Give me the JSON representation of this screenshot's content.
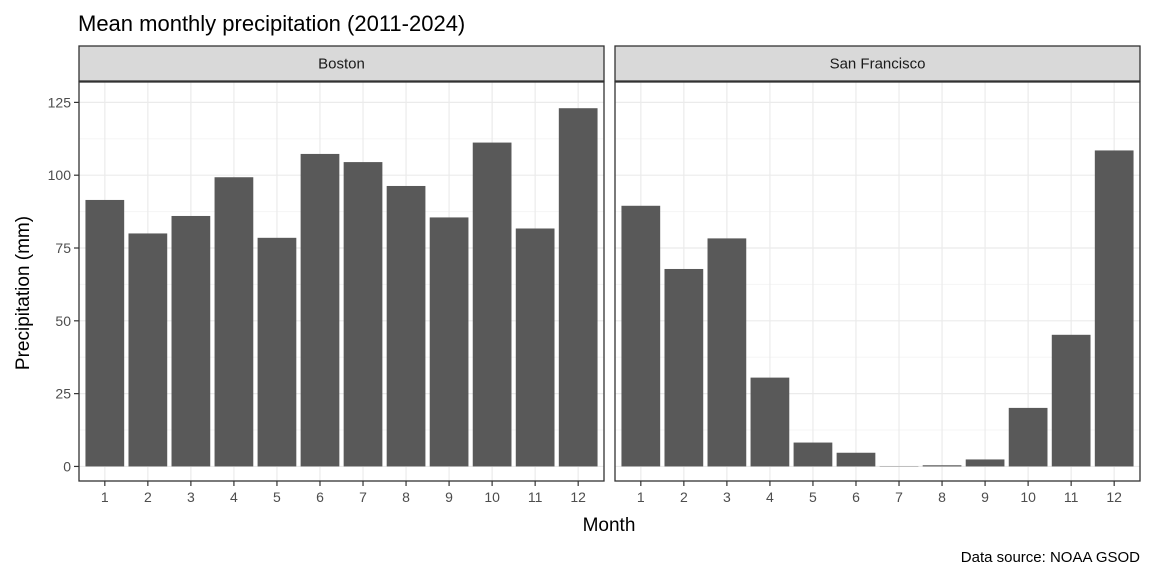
{
  "title": "Mean monthly precipitation (2011-2024)",
  "caption": "Data source: NOAA GSOD",
  "colors": {
    "bar": "#595959",
    "strip_fill": "#d9d9d9",
    "grid_major": "#ebebeb",
    "grid_minor": "#f5f5f5",
    "panel_border": "#333333"
  },
  "chart_data": {
    "type": "bar",
    "title": "Mean monthly precipitation (2011-2024)",
    "xlabel": "Month",
    "ylabel": "Precipitation (mm)",
    "ylim": [
      -5,
      132
    ],
    "yticks": [
      0,
      25,
      50,
      75,
      100,
      125
    ],
    "grid": true,
    "categories": [
      "1",
      "2",
      "3",
      "4",
      "5",
      "6",
      "7",
      "8",
      "9",
      "10",
      "11",
      "12"
    ],
    "facets": [
      {
        "name": "Boston",
        "values": [
          91.5,
          80,
          86,
          99.3,
          78.5,
          107.3,
          104.5,
          96.3,
          85.5,
          111.2,
          81.7,
          123
        ]
      },
      {
        "name": "San Francisco",
        "values": [
          89.5,
          67.8,
          78.3,
          30.5,
          8.2,
          4.7,
          0.1,
          0.4,
          2.4,
          20.1,
          45.2,
          108.5
        ]
      }
    ]
  }
}
